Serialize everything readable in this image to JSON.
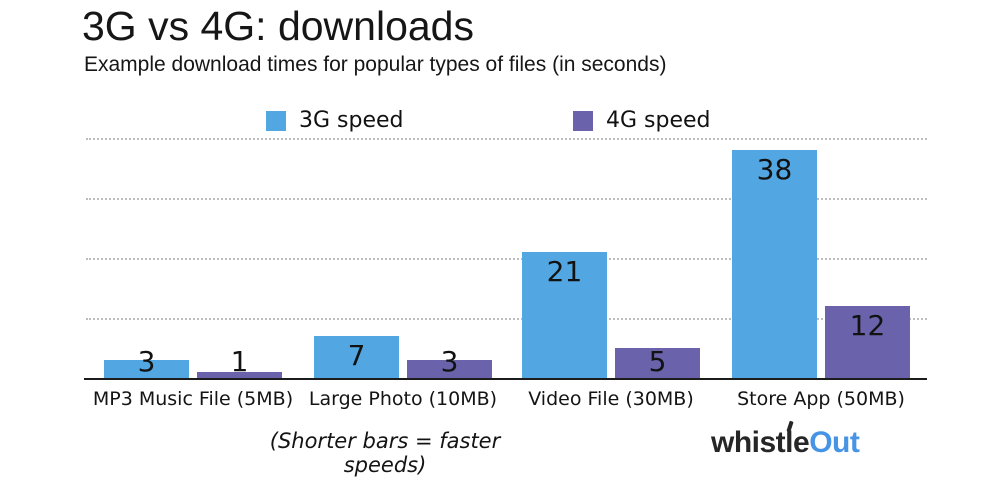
{
  "header": {
    "title": "3G vs 4G: downloads",
    "subtitle": "Example download times for popular types of files (in seconds)"
  },
  "chart_data": {
    "type": "bar",
    "title": "3G vs 4G: downloads",
    "subtitle": "Example download times for popular types of files (in seconds)",
    "categories": [
      "MP3 Music File (5MB)",
      "Large Photo (10MB)",
      "Video File (30MB)",
      "Store App (50MB)"
    ],
    "series": [
      {
        "name": "3G speed",
        "color": "#52A7E2",
        "values": [
          3,
          7,
          21,
          38
        ]
      },
      {
        "name": "4G speed",
        "color": "#6A62AB",
        "values": [
          1,
          3,
          5,
          12
        ]
      }
    ],
    "xlabel": "",
    "ylabel": "",
    "ylim": [
      0,
      40
    ],
    "gridline_values": [
      10,
      20,
      30,
      40
    ],
    "grid_style": "dotted-horizontal-gray",
    "legend_position": "top",
    "bar_value_labels": true,
    "units": "seconds"
  },
  "footer": {
    "note": "(Shorter bars = faster speeds)",
    "logo_dark": "whistle",
    "logo_blue": "Out"
  },
  "colors": {
    "bar_3g": "#52A7E2",
    "bar_4g": "#6A62AB",
    "gridline": "#bdbdbd",
    "axis_line": "#1c1c1c",
    "text": "#161616",
    "logo_dark": "#262626",
    "logo_blue": "#4793E6"
  }
}
